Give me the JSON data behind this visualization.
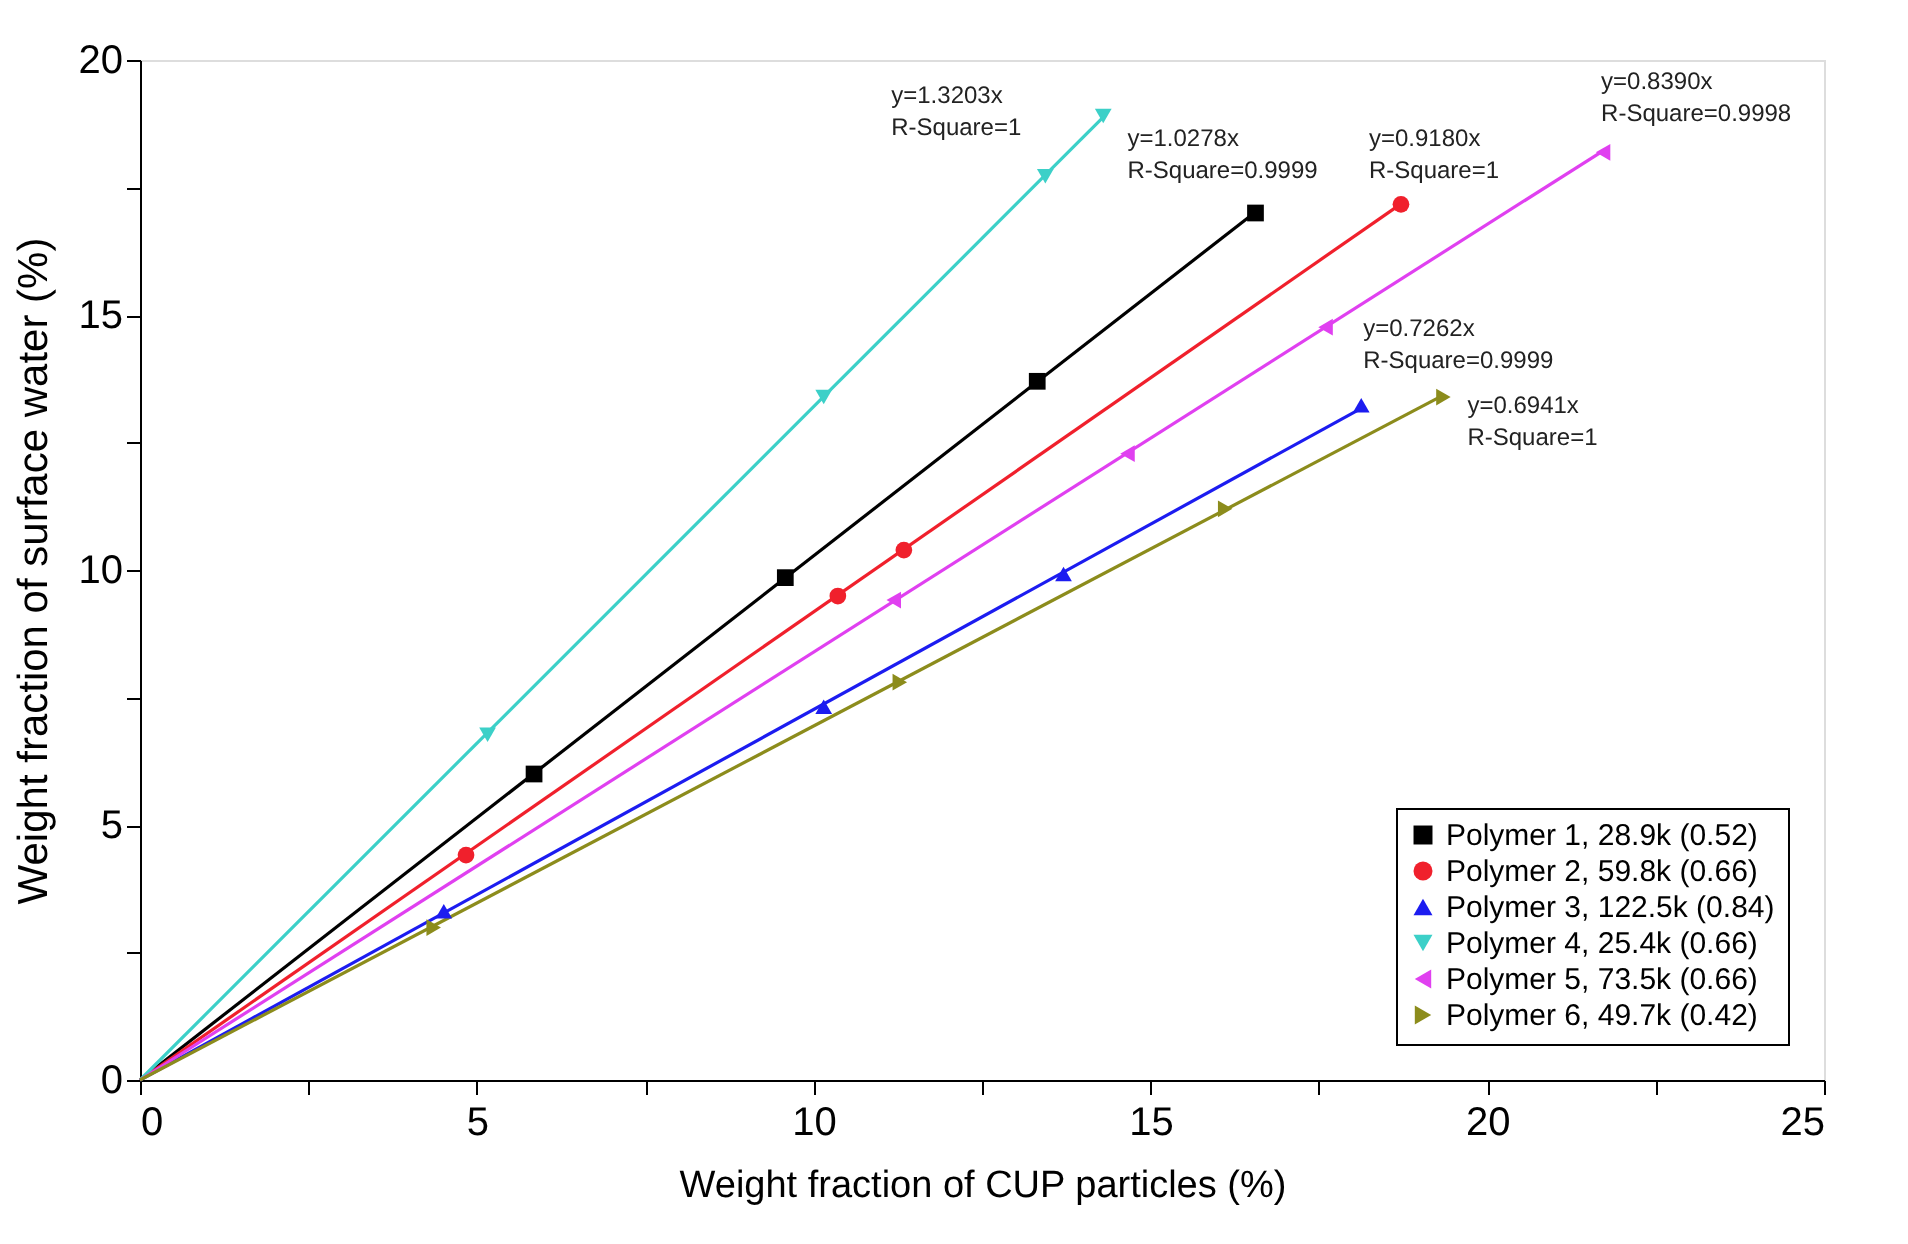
{
  "chart_data": {
    "type": "scatter",
    "xlabel": "Weight fraction of CUP particles (%)",
    "ylabel": "Weight fraction of surface water (%)",
    "xlim": [
      0,
      25
    ],
    "ylim": [
      0,
      20
    ],
    "xticks": [
      0,
      {
        "value": 2.5,
        "label": null
      },
      5,
      {
        "value": 7.5,
        "label": null
      },
      10,
      {
        "value": 12.5,
        "label": null
      },
      15,
      {
        "value": 17.5,
        "label": null
      },
      20,
      {
        "value": 22.5,
        "label": null
      },
      25
    ],
    "yticks": [
      0,
      {
        "value": 2.5,
        "label": null
      },
      5,
      {
        "value": 7.5,
        "label": null
      },
      10,
      {
        "value": 12.5,
        "label": null
      },
      15,
      {
        "value": 17.5,
        "label": null
      },
      20
    ],
    "grid": false,
    "legend": "bottom right",
    "series": [
      {
        "name": "Polymer 1, 28.9k (0.52)",
        "color": "#000000",
        "marker": "square",
        "x": [
          5.85,
          9.58,
          13.32,
          16.56
        ],
        "values": [
          6.0,
          9.85,
          13.7,
          17.0
        ]
      },
      {
        "name": "Polymer 2, 59.8k (0.66)",
        "color": "#f0202c",
        "marker": "circle",
        "x": [
          4.84,
          10.36,
          11.34,
          18.72
        ],
        "values": [
          4.41,
          9.49,
          10.39,
          17.17
        ]
      },
      {
        "name": "Polymer 3, 122.5k (0.84)",
        "color": "#1c1cf0",
        "marker": "triangle",
        "x": [
          4.51,
          10.15,
          13.71,
          18.13
        ],
        "values": [
          3.31,
          7.32,
          9.92,
          13.23
        ]
      },
      {
        "name": "Polymer 4, 25.4k (0.66)",
        "color": "#3cd0c8",
        "marker": "triangle-down",
        "x": [
          5.16,
          10.15,
          13.44,
          14.3
        ],
        "values": [
          6.77,
          13.39,
          17.72,
          18.9
        ]
      },
      {
        "name": "Polymer 5, 73.5k (0.66)",
        "color": "#e040f0",
        "marker": "triangle-left",
        "x": [
          11.19,
          14.66,
          17.6,
          21.72
        ],
        "values": [
          9.41,
          12.28,
          14.76,
          18.19
        ]
      },
      {
        "name": "Polymer 6, 49.7k (0.42)",
        "color": "#8c8c1c",
        "marker": "triangle-right",
        "x": [
          4.36,
          11.28,
          16.11,
          19.35
        ],
        "values": [
          2.99,
          7.8,
          11.2,
          13.39
        ]
      },
      {
        "type": "line",
        "color": "#000000",
        "x": [
          0,
          16.56
        ],
        "values": [
          0,
          17.02
        ]
      },
      {
        "type": "line",
        "color": "#f0202c",
        "x": [
          0,
          18.72
        ],
        "values": [
          0,
          17.18
        ]
      },
      {
        "type": "line",
        "color": "#1c1cf0",
        "x": [
          0,
          18.13
        ],
        "values": [
          0,
          13.17
        ]
      },
      {
        "type": "line",
        "color": "#3cd0c8",
        "x": [
          0,
          14.3
        ],
        "values": [
          0,
          18.88
        ]
      },
      {
        "type": "line",
        "color": "#e040f0",
        "x": [
          0,
          21.72
        ],
        "values": [
          0,
          18.22
        ]
      },
      {
        "type": "line",
        "color": "#8c8c1c",
        "x": [
          0,
          19.35
        ],
        "values": [
          0,
          13.43
        ]
      }
    ],
    "annotations": [
      "y=1.0278x\nR-Square=0.9999",
      "y=0.9180x\nR-Square=1",
      "y=0.7262x\nR-Square=0.9999",
      "y=1.3203x\nR-Square=1",
      "y=0.8390x\nR-Square=0.9998",
      "y=0.6941x\nR-Square=1"
    ]
  }
}
